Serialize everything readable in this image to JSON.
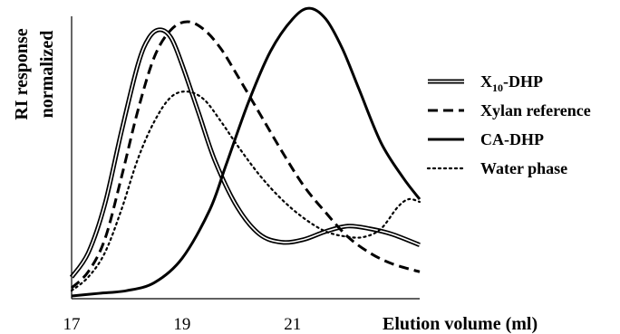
{
  "chart_data": {
    "type": "line",
    "title": "",
    "xlabel": "Elution volume (ml)",
    "ylabel": [
      "RI response",
      "normalized"
    ],
    "xlim": [
      17,
      23.3
    ],
    "ylim": [
      0,
      1.05
    ],
    "x_ticks": [
      "17",
      "19",
      "21"
    ],
    "grid": false,
    "legend_position": "right",
    "series": [
      {
        "name": "X10-DHP",
        "name_main": "X",
        "name_sub": "10",
        "name_tail": "-DHP",
        "style": "double",
        "x": [
          17.0,
          17.3,
          17.6,
          17.9,
          18.2,
          18.4,
          18.6,
          18.8,
          19.0,
          19.3,
          19.6,
          20.0,
          20.4,
          20.8,
          21.2,
          21.6,
          22.0,
          22.4,
          22.8,
          23.3
        ],
        "y": [
          0.08,
          0.17,
          0.35,
          0.62,
          0.87,
          0.97,
          1.0,
          0.97,
          0.87,
          0.69,
          0.51,
          0.34,
          0.24,
          0.21,
          0.22,
          0.25,
          0.27,
          0.26,
          0.24,
          0.2
        ]
      },
      {
        "name": "Xylan reference",
        "style": "dashed",
        "x": [
          17.0,
          17.3,
          17.6,
          17.9,
          18.2,
          18.5,
          18.8,
          19.1,
          19.4,
          19.7,
          20.0,
          20.4,
          20.8,
          21.2,
          21.6,
          22.0,
          22.4,
          22.8,
          23.3
        ],
        "y": [
          0.04,
          0.1,
          0.22,
          0.45,
          0.7,
          0.9,
          1.0,
          1.03,
          1.0,
          0.93,
          0.83,
          0.69,
          0.55,
          0.42,
          0.32,
          0.23,
          0.17,
          0.13,
          0.1
        ]
      },
      {
        "name": "CA-DHP",
        "style": "solid",
        "x": [
          17.0,
          17.5,
          18.0,
          18.5,
          19.0,
          19.5,
          19.8,
          20.2,
          20.6,
          21.0,
          21.3,
          21.6,
          21.9,
          22.2,
          22.6,
          23.0,
          23.3
        ],
        "y": [
          0.01,
          0.02,
          0.03,
          0.06,
          0.15,
          0.33,
          0.5,
          0.73,
          0.92,
          1.04,
          1.08,
          1.04,
          0.93,
          0.78,
          0.58,
          0.45,
          0.37
        ]
      },
      {
        "name": "Water phase",
        "style": "dotted",
        "x": [
          17.0,
          17.3,
          17.6,
          17.9,
          18.2,
          18.5,
          18.8,
          19.1,
          19.4,
          19.7,
          20.0,
          20.4,
          20.8,
          21.2,
          21.6,
          22.0,
          22.3,
          22.6,
          22.9,
          23.1,
          23.3
        ],
        "y": [
          0.03,
          0.08,
          0.17,
          0.33,
          0.52,
          0.66,
          0.75,
          0.77,
          0.74,
          0.66,
          0.57,
          0.46,
          0.37,
          0.3,
          0.25,
          0.23,
          0.23,
          0.26,
          0.34,
          0.37,
          0.36
        ]
      }
    ]
  }
}
